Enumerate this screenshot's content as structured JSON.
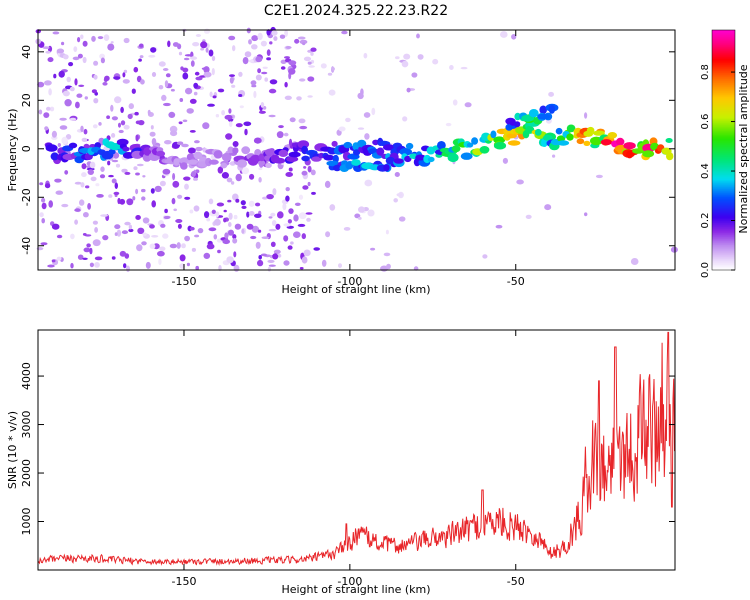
{
  "title": "C2E1.2024.325.22.23.R22",
  "chart_data": [
    {
      "type": "heatmap",
      "xlabel": "Height of straight line (km)",
      "ylabel": "Frequency (Hz)",
      "xlim": [
        -194,
        -2
      ],
      "ylim": [
        -50,
        49
      ],
      "x_ticks": [
        -150,
        -100,
        -50
      ],
      "x_tick_labels": [
        "-150",
        "-100",
        "-50"
      ],
      "y_ticks": [
        -40,
        -20,
        0,
        20,
        40
      ],
      "y_tick_labels": [
        "-40",
        "-20",
        "0",
        "20",
        "40"
      ],
      "colorbar": {
        "label": "Normalized spectral amplitude",
        "range": [
          0,
          0.97
        ],
        "ticks": [
          0.0,
          0.2,
          0.4,
          0.6,
          0.8
        ],
        "tick_labels": [
          "0.0",
          "0.2",
          "0.4",
          "0.6",
          "0.8"
        ],
        "colormap": "rainbow (white-violet-blue-cyan-green-yellow-red-magenta)"
      },
      "ridge": [
        {
          "x": -190,
          "y": -2,
          "amp": 0.2
        },
        {
          "x": -180,
          "y": -2,
          "amp": 0.3
        },
        {
          "x": -170,
          "y": 0,
          "amp": 0.35
        },
        {
          "x": -160,
          "y": -3,
          "amp": 0.15
        },
        {
          "x": -150,
          "y": -4,
          "amp": 0.1
        },
        {
          "x": -140,
          "y": -4,
          "amp": 0.1
        },
        {
          "x": -130,
          "y": -3,
          "amp": 0.15
        },
        {
          "x": -120,
          "y": -2,
          "amp": 0.2
        },
        {
          "x": -110,
          "y": -1,
          "amp": 0.25
        },
        {
          "x": -100,
          "y": -1,
          "amp": 0.3
        },
        {
          "x": -90,
          "y": 0,
          "amp": 0.3
        },
        {
          "x": -80,
          "y": -3,
          "amp": 0.35
        },
        {
          "x": -70,
          "y": -1,
          "amp": 0.45
        },
        {
          "x": -60,
          "y": 2,
          "amp": 0.55
        },
        {
          "x": -50,
          "y": 5,
          "amp": 0.7
        },
        {
          "x": -45,
          "y": 9,
          "amp": 0.6
        },
        {
          "x": -40,
          "y": 4,
          "amp": 0.4
        },
        {
          "x": -30,
          "y": 6,
          "amp": 0.7
        },
        {
          "x": -20,
          "y": 2,
          "amp": 0.85
        },
        {
          "x": -10,
          "y": 0,
          "amp": 0.9
        },
        {
          "x": -3,
          "y": 0,
          "amp": 0.6
        }
      ],
      "upper_branch": [
        {
          "x": -52,
          "y": 10,
          "amp": 0.3
        },
        {
          "x": -45,
          "y": 13,
          "amp": 0.5
        },
        {
          "x": -38,
          "y": 16,
          "amp": 0.25
        }
      ],
      "lower_branch": [
        {
          "x": -105,
          "y": -7,
          "amp": 0.3
        },
        {
          "x": -95,
          "y": -7,
          "amp": 0.35
        },
        {
          "x": -85,
          "y": -6,
          "amp": 0.3
        }
      ]
    },
    {
      "type": "line",
      "xlabel": "Height of straight line (km)",
      "ylabel": "SNR (10 * v/v)",
      "xlim": [
        -194,
        -2
      ],
      "ylim": [
        0,
        4950
      ],
      "x_ticks": [
        -150,
        -100,
        -50
      ],
      "x_tick_labels": [
        "-150",
        "-100",
        "-50"
      ],
      "y_ticks": [
        1000,
        2000,
        3000,
        4000
      ],
      "y_tick_labels": [
        "1000",
        "2000",
        "3000",
        "4000"
      ],
      "color": "#e8262a",
      "x": [
        -194,
        -190,
        -185,
        -180,
        -175,
        -170,
        -165,
        -160,
        -155,
        -150,
        -145,
        -140,
        -135,
        -130,
        -125,
        -120,
        -115,
        -110,
        -105,
        -100,
        -98,
        -95,
        -90,
        -85,
        -80,
        -75,
        -70,
        -65,
        -60,
        -55,
        -50,
        -45,
        -40,
        -37,
        -35,
        -32,
        -30,
        -28,
        -25,
        -22,
        -20,
        -17,
        -15,
        -12,
        -10,
        -8,
        -6,
        -4,
        -2
      ],
      "values": [
        150,
        180,
        200,
        210,
        190,
        170,
        160,
        150,
        140,
        145,
        150,
        150,
        155,
        160,
        165,
        170,
        180,
        220,
        280,
        450,
        650,
        550,
        450,
        420,
        480,
        550,
        600,
        700,
        800,
        850,
        750,
        650,
        350,
        400,
        500,
        900,
        1300,
        2200,
        2300,
        2000,
        2700,
        2400,
        2500,
        2800,
        3000,
        2800,
        3400,
        3000,
        3100
      ],
      "peaks": [
        {
          "x": -101,
          "y": 950
        },
        {
          "x": -60,
          "y": 1650
        },
        {
          "x": -25,
          "y": 3900
        },
        {
          "x": -20,
          "y": 4600
        },
        {
          "x": -4,
          "y": 4900
        },
        {
          "x": -3,
          "y": 1300
        }
      ]
    }
  ]
}
